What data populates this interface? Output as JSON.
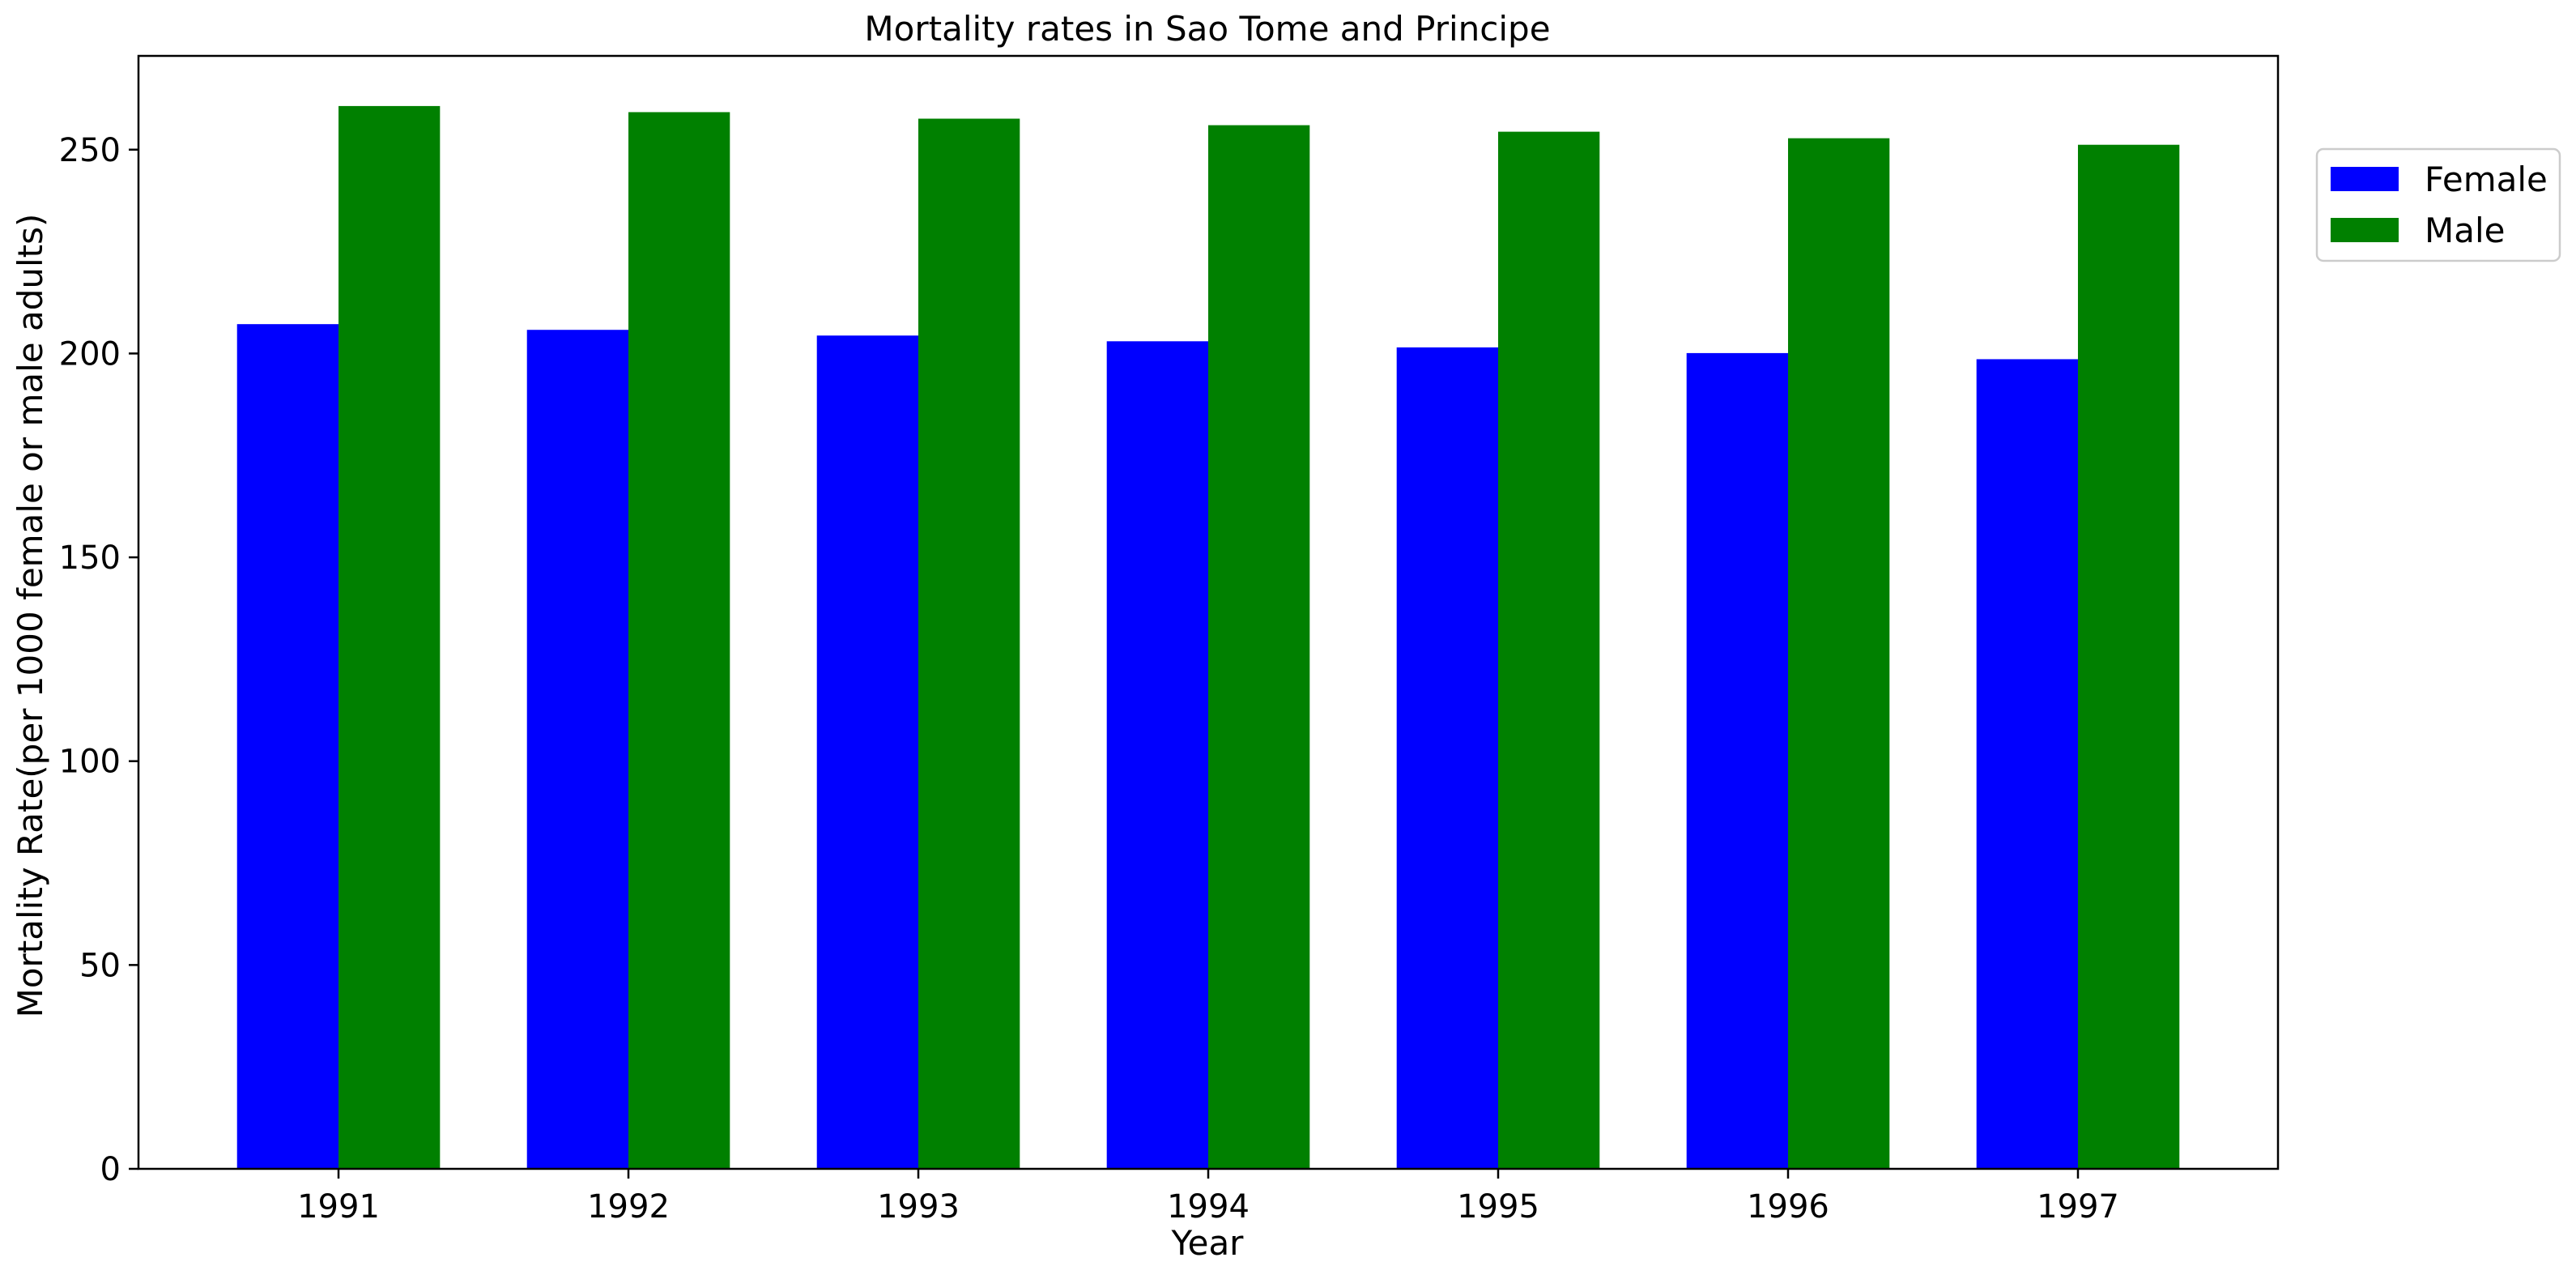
{
  "chart_data": {
    "type": "bar",
    "title": "Mortality rates in Sao Tome and Principe",
    "xlabel": "Year",
    "ylabel": "Mortality Rate(per 1000 female or male adults)",
    "categories": [
      "1991",
      "1992",
      "1993",
      "1994",
      "1995",
      "1996",
      "1997"
    ],
    "series": [
      {
        "name": "Female",
        "color": "#0000ff",
        "values": [
          207.2,
          205.8,
          204.4,
          203.0,
          201.5,
          200.1,
          198.6
        ]
      },
      {
        "name": "Male",
        "color": "#008000",
        "values": [
          260.7,
          259.2,
          257.6,
          256.0,
          254.4,
          252.8,
          251.2
        ]
      }
    ],
    "ylim": [
      0,
      273
    ],
    "yticks": [
      0,
      50,
      100,
      150,
      200,
      250
    ],
    "grid": false,
    "legend_position": "upper-right-outside"
  }
}
